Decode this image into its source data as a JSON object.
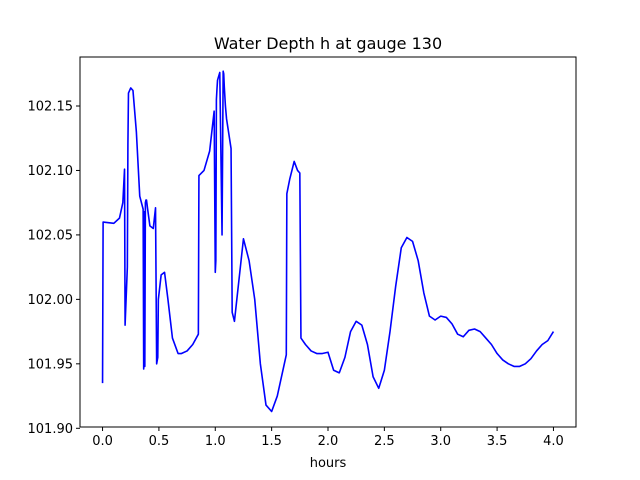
{
  "chart_data": {
    "type": "line",
    "title": "Water Depth h at gauge 130",
    "xlabel": "hours",
    "ylabel": "",
    "xlim": [
      -0.2,
      4.2
    ],
    "ylim": [
      101.901,
      102.188
    ],
    "xticks": [
      0.0,
      0.5,
      1.0,
      1.5,
      2.0,
      2.5,
      3.0,
      3.5,
      4.0
    ],
    "xtick_labels": [
      "0.0",
      "0.5",
      "1.0",
      "1.5",
      "2.0",
      "2.5",
      "3.0",
      "3.5",
      "4.0"
    ],
    "yticks": [
      101.9,
      101.95,
      102.0,
      102.05,
      102.1,
      102.15
    ],
    "ytick_labels": [
      "101.90",
      "101.95",
      "102.00",
      "102.05",
      "102.10",
      "102.15"
    ],
    "grid": false,
    "line_color": "#0000ff",
    "series": [
      {
        "x": [
          0.0,
          0.005,
          0.1,
          0.15,
          0.18,
          0.195,
          0.2,
          0.22,
          0.225,
          0.23,
          0.25,
          0.27,
          0.3,
          0.33,
          0.36,
          0.365,
          0.37,
          0.375,
          0.38,
          0.385,
          0.39,
          0.4,
          0.42,
          0.45,
          0.47,
          0.48,
          0.49,
          0.495,
          0.52,
          0.55,
          0.58,
          0.62,
          0.67,
          0.7,
          0.75,
          0.8,
          0.85,
          0.855,
          0.9,
          0.95,
          0.99,
          1.0,
          1.005,
          1.01,
          1.015,
          1.02,
          1.04,
          1.06,
          1.07,
          1.075,
          1.08,
          1.09,
          1.1,
          1.14,
          1.15,
          1.17,
          1.2,
          1.25,
          1.3,
          1.35,
          1.4,
          1.45,
          1.5,
          1.55,
          1.6,
          1.63,
          1.635,
          1.66,
          1.7,
          1.73,
          1.75,
          1.76,
          1.8,
          1.85,
          1.9,
          1.95,
          2.0,
          2.05,
          2.1,
          2.15,
          2.2,
          2.25,
          2.3,
          2.35,
          2.4,
          2.45,
          2.5,
          2.55,
          2.6,
          2.65,
          2.7,
          2.75,
          2.8,
          2.85,
          2.9,
          2.95,
          3.0,
          3.05,
          3.1,
          3.15,
          3.2,
          3.25,
          3.3,
          3.35,
          3.4,
          3.45,
          3.5,
          3.55,
          3.6,
          3.65,
          3.7,
          3.75,
          3.8,
          3.85,
          3.9,
          3.95,
          4.0
        ],
        "y": [
          101.935,
          102.06,
          102.059,
          102.063,
          102.075,
          102.101,
          101.98,
          102.025,
          102.12,
          102.16,
          102.164,
          102.162,
          102.13,
          102.08,
          102.07,
          101.946,
          102.068,
          101.948,
          102.075,
          102.077,
          102.077,
          102.07,
          102.057,
          102.055,
          102.071,
          101.95,
          101.955,
          102.0,
          102.019,
          102.021,
          102.0,
          101.97,
          101.958,
          101.958,
          101.96,
          101.965,
          101.973,
          102.096,
          102.1,
          102.115,
          102.146,
          102.021,
          102.03,
          102.155,
          102.163,
          102.17,
          102.176,
          102.05,
          102.177,
          102.175,
          102.165,
          102.15,
          102.14,
          102.117,
          101.99,
          101.983,
          102.007,
          102.047,
          102.03,
          102.0,
          101.95,
          101.918,
          101.913,
          101.925,
          101.945,
          101.957,
          102.082,
          102.093,
          102.107,
          102.1,
          102.098,
          101.97,
          101.965,
          101.96,
          101.958,
          101.958,
          101.959,
          101.945,
          101.943,
          101.955,
          101.975,
          101.983,
          101.98,
          101.965,
          101.94,
          101.931,
          101.945,
          101.975,
          102.01,
          102.04,
          102.048,
          102.045,
          102.03,
          102.005,
          101.987,
          101.984,
          101.987,
          101.986,
          101.981,
          101.973,
          101.971,
          101.976,
          101.977,
          101.975,
          101.97,
          101.965,
          101.958,
          101.953,
          101.95,
          101.948,
          101.948,
          101.95,
          101.954,
          101.96,
          101.965,
          101.968,
          101.975
        ]
      }
    ]
  }
}
